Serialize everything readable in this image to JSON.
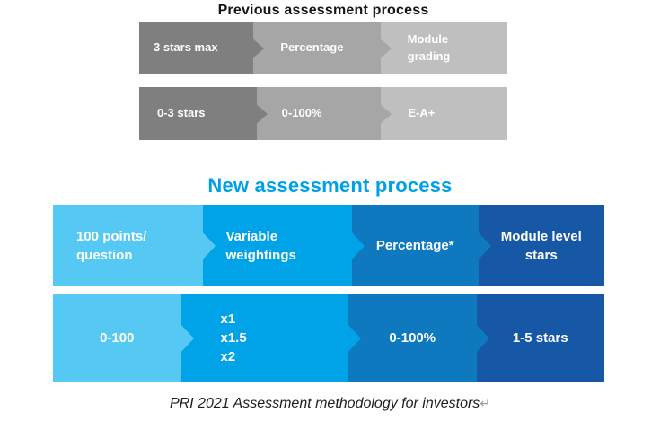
{
  "previous": {
    "title": "Previous assessment process",
    "colors": [
      "#7F7F7F",
      "#A6A6A6",
      "#BFBFBF"
    ],
    "rows": [
      {
        "cells": [
          {
            "label": "3 stars max"
          },
          {
            "label": "Percentage"
          },
          {
            "label": "Module\ngrading"
          }
        ]
      },
      {
        "cells": [
          {
            "label": "0-3 stars"
          },
          {
            "label": "0-100%"
          },
          {
            "label": "E-A+"
          }
        ]
      }
    ]
  },
  "new": {
    "title": "New assessment process",
    "title_color": "#00A0E9",
    "colors": [
      "#55C9F3",
      "#00A2E8",
      "#0E79BF",
      "#1657A6"
    ],
    "rows": [
      {
        "cells": [
          {
            "label": "100 points/\nquestion"
          },
          {
            "label": "Variable\nweightings"
          },
          {
            "label": "Percentage*"
          },
          {
            "label": "Module level\nstars"
          }
        ]
      },
      {
        "cells": [
          {
            "label": "0-100"
          },
          {
            "label": "x1\nx1.5\nx2"
          },
          {
            "label": "0-100%"
          },
          {
            "label": "1-5 stars"
          }
        ]
      }
    ]
  },
  "caption": {
    "text": "PRI 2021 Assessment methodology for investors",
    "return_mark": "↵"
  }
}
